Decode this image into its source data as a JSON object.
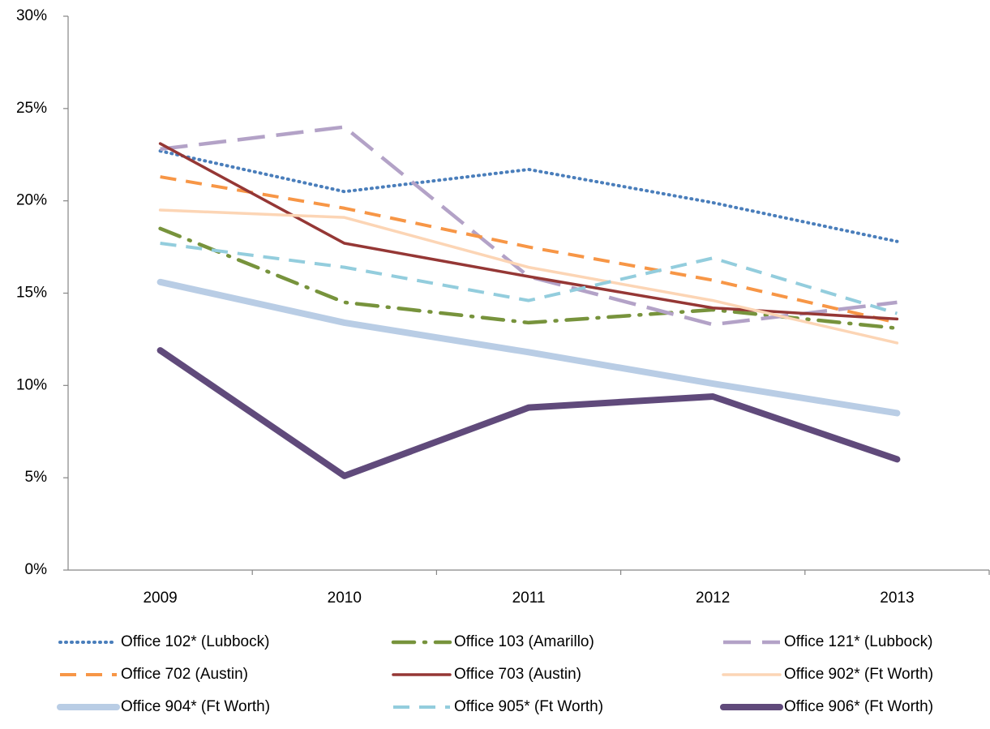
{
  "chart_data": {
    "type": "line",
    "categories": [
      "2009",
      "2010",
      "2011",
      "2012",
      "2013"
    ],
    "ylim": [
      0,
      30
    ],
    "yticks": [
      {
        "value": 0,
        "label": "0%"
      },
      {
        "value": 5,
        "label": "5%"
      },
      {
        "value": 10,
        "label": "10%"
      },
      {
        "value": 15,
        "label": "15%"
      },
      {
        "value": 20,
        "label": "20%"
      },
      {
        "value": 25,
        "label": "25%"
      },
      {
        "value": 30,
        "label": "30%"
      }
    ],
    "legend": "bottom",
    "series": [
      {
        "name": "Office 102* (Lubbock)",
        "color": "#4a7ebb",
        "line_style": "dotted",
        "values": [
          22.7,
          20.5,
          21.7,
          19.9,
          17.8
        ]
      },
      {
        "name": "Office 103 (Amarillo)",
        "color": "#77933c",
        "line_style": "dash-dot",
        "values": [
          18.5,
          14.5,
          13.4,
          14.1,
          13.1
        ]
      },
      {
        "name": "Office 121* (Lubbock)",
        "color": "#b3a2c7",
        "line_style": "long-dash",
        "values": [
          22.8,
          24.0,
          15.9,
          13.3,
          14.5
        ]
      },
      {
        "name": "Office 702 (Austin)",
        "color": "#f79646",
        "line_style": "dashed",
        "values": [
          21.3,
          19.6,
          17.5,
          15.7,
          13.4
        ]
      },
      {
        "name": "Office 703 (Austin)",
        "color": "#953735",
        "line_style": "solid",
        "values": [
          23.1,
          17.7,
          15.9,
          14.2,
          13.6
        ]
      },
      {
        "name": "Office 902* (Ft Worth)",
        "color": "#fcd5b5",
        "line_style": "solid",
        "values": [
          19.5,
          19.1,
          16.4,
          14.6,
          12.3
        ]
      },
      {
        "name": "Office 904* (Ft Worth)",
        "color": "#b9cde5",
        "line_style": "thick",
        "values": [
          15.6,
          13.4,
          11.8,
          10.1,
          8.5
        ]
      },
      {
        "name": "Office 905* (Ft Worth)",
        "color": "#93cddd",
        "line_style": "dashed",
        "values": [
          17.7,
          16.4,
          14.6,
          16.9,
          13.9
        ]
      },
      {
        "name": "Office 906* (Ft Worth)",
        "color": "#604a7b",
        "line_style": "thick",
        "values": [
          11.9,
          5.1,
          8.8,
          9.4,
          6.0
        ]
      }
    ]
  }
}
